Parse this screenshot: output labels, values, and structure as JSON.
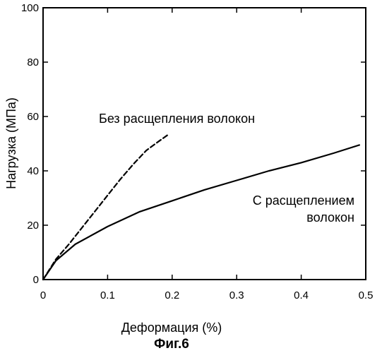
{
  "chart_data": {
    "type": "line",
    "xlabel": "Деформация (%)",
    "ylabel": "Нагрузка (МПа)",
    "xlim": [
      0,
      0.5
    ],
    "ylim": [
      0,
      100
    ],
    "xticks": [
      0,
      0.1,
      0.2,
      0.3,
      0.4,
      0.5
    ],
    "xtick_labels": [
      "0",
      "0.1",
      "0.2",
      "0.3",
      "0.4",
      "0.5"
    ],
    "yticks": [
      0,
      20,
      40,
      60,
      80,
      100
    ],
    "ytick_labels": [
      "0",
      "20",
      "40",
      "60",
      "80",
      "100"
    ],
    "grid": false,
    "legend": "none",
    "series": [
      {
        "name": "Без расщепления волокон",
        "style": "dashed",
        "color": "#000000",
        "x": [
          0,
          0.02,
          0.04,
          0.06,
          0.08,
          0.1,
          0.12,
          0.14,
          0.16,
          0.18,
          0.195
        ],
        "y": [
          0,
          7.5,
          13,
          19,
          25,
          31,
          37,
          42.5,
          47.5,
          51,
          53.5
        ]
      },
      {
        "name": "С расщеплением волокон",
        "style": "solid",
        "color": "#000000",
        "x": [
          0,
          0.02,
          0.05,
          0.1,
          0.15,
          0.2,
          0.25,
          0.3,
          0.35,
          0.4,
          0.45,
          0.49
        ],
        "y": [
          0,
          7,
          13,
          19.5,
          25,
          29,
          33,
          36.5,
          40,
          43,
          46.5,
          49.5
        ]
      }
    ],
    "annotations": [
      {
        "text": "Без расщепления волокон",
        "series": 0
      },
      {
        "text": "С расщеплением",
        "series": 1
      },
      {
        "text": "волокон",
        "series": 1
      }
    ],
    "caption": "Фиг.6"
  }
}
